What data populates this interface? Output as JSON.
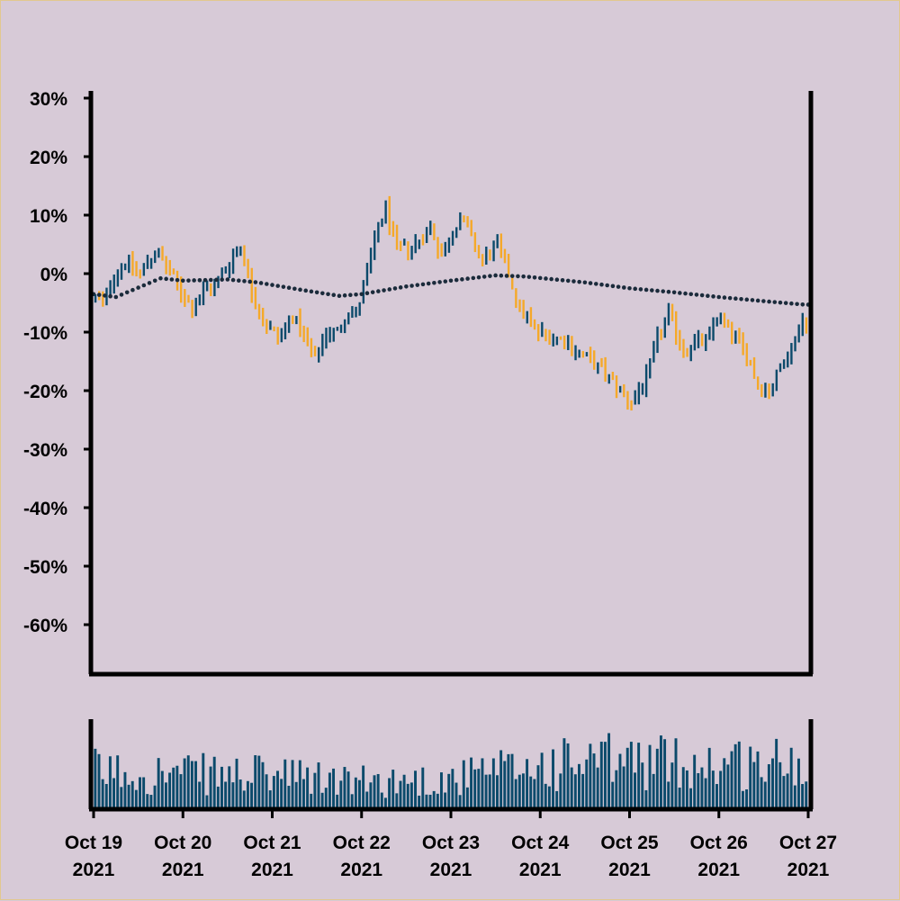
{
  "colors": {
    "background": "#d7cad7",
    "border": "#e2c88f",
    "up": "#0b4a6b",
    "down": "#f5a92a",
    "moving_average": "#1b2b3b",
    "volume": "#0b4a6b",
    "axis": "#000000"
  },
  "chart_data": [
    {
      "type": "ohlc",
      "title": "",
      "xlabel": "",
      "ylabel": "",
      "yunit": "%",
      "ylim": [
        -70,
        30
      ],
      "yticks": [
        30,
        20,
        10,
        0,
        -10,
        -20,
        -30,
        -40,
        -50,
        -60
      ],
      "ytick_labels": [
        "30%",
        "20%",
        "10%",
        "0%",
        "-10%",
        "-20%",
        "-30%",
        "-40%",
        "-50%",
        "-60%"
      ],
      "x_start": "2021-10-19 00:00",
      "x_end": "2021-10-27 00:00",
      "bar_interval_hours": 1,
      "grid": false,
      "close_path": [
        [
          "2021-10-19 00:00",
          -4
        ],
        [
          "2021-10-19 03:00",
          -5
        ],
        [
          "2021-10-19 06:00",
          0
        ],
        [
          "2021-10-19 09:00",
          2
        ],
        [
          "2021-10-19 13:00",
          0
        ],
        [
          "2021-10-19 17:00",
          4
        ],
        [
          "2021-10-19 22:00",
          -1
        ],
        [
          "2021-10-20 03:00",
          -6
        ],
        [
          "2021-10-20 06:00",
          -3
        ],
        [
          "2021-10-20 09:00",
          -2
        ],
        [
          "2021-10-20 13:00",
          2
        ],
        [
          "2021-10-20 16:00",
          5
        ],
        [
          "2021-10-20 19:00",
          -3
        ],
        [
          "2021-10-20 22:00",
          -8
        ],
        [
          "2021-10-21 02:00",
          -11
        ],
        [
          "2021-10-21 06:00",
          -7
        ],
        [
          "2021-10-21 09:00",
          -11
        ],
        [
          "2021-10-21 12:00",
          -15
        ],
        [
          "2021-10-21 15:00",
          -10
        ],
        [
          "2021-10-21 18:00",
          -10
        ],
        [
          "2021-10-21 21:00",
          -6
        ],
        [
          "2021-10-21 23:00",
          -7
        ],
        [
          "2021-10-22 02:00",
          0
        ],
        [
          "2021-10-22 05:00",
          8
        ],
        [
          "2021-10-22 07:00",
          11
        ],
        [
          "2021-10-22 10:00",
          4
        ],
        [
          "2021-10-22 15:00",
          5
        ],
        [
          "2021-10-22 19:00",
          8
        ],
        [
          "2021-10-22 22:00",
          3
        ],
        [
          "2021-10-23 03:00",
          10
        ],
        [
          "2021-10-23 06:00",
          6
        ],
        [
          "2021-10-23 09:00",
          2
        ],
        [
          "2021-10-23 13:00",
          5
        ],
        [
          "2021-10-23 16:00",
          0
        ],
        [
          "2021-10-23 19:00",
          -6
        ],
        [
          "2021-10-24 00:00",
          -10
        ],
        [
          "2021-10-24 06:00",
          -11
        ],
        [
          "2021-10-24 12:00",
          -14
        ],
        [
          "2021-10-24 18:00",
          -17
        ],
        [
          "2021-10-24 22:00",
          -20
        ],
        [
          "2021-10-25 01:00",
          -22
        ],
        [
          "2021-10-25 05:00",
          -18
        ],
        [
          "2021-10-25 08:00",
          -11
        ],
        [
          "2021-10-25 11:00",
          -7
        ],
        [
          "2021-10-25 15:00",
          -13
        ],
        [
          "2021-10-25 18:00",
          -12
        ],
        [
          "2021-10-25 22:00",
          -11
        ],
        [
          "2021-10-26 00:00",
          -7
        ],
        [
          "2021-10-26 04:00",
          -10
        ],
        [
          "2021-10-26 08:00",
          -14
        ],
        [
          "2021-10-26 11:00",
          -19
        ],
        [
          "2021-10-26 14:00",
          -20
        ],
        [
          "2021-10-26 18:00",
          -15
        ],
        [
          "2021-10-26 21:00",
          -11
        ],
        [
          "2021-10-26 23:00",
          -8
        ]
      ],
      "moving_average": [
        [
          "2021-10-19 00:00",
          -3.5
        ],
        [
          "2021-10-19 06:00",
          -4
        ],
        [
          "2021-10-19 18:00",
          -0.8
        ],
        [
          "2021-10-20 00:00",
          -1.2
        ],
        [
          "2021-10-20 12:00",
          -1
        ],
        [
          "2021-10-20 20:00",
          -1.5
        ],
        [
          "2021-10-21 08:00",
          -2.8
        ],
        [
          "2021-10-21 18:00",
          -3.8
        ],
        [
          "2021-10-22 00:00",
          -3.5
        ],
        [
          "2021-10-22 12:00",
          -2.2
        ],
        [
          "2021-10-23 00:00",
          -1.2
        ],
        [
          "2021-10-23 12:00",
          -0.3
        ],
        [
          "2021-10-23 20:00",
          -0.5
        ],
        [
          "2021-10-24 12:00",
          -1.5
        ],
        [
          "2021-10-25 00:00",
          -2.5
        ],
        [
          "2021-10-25 12:00",
          -3.2
        ],
        [
          "2021-10-26 00:00",
          -4
        ],
        [
          "2021-10-26 12:00",
          -4.7
        ],
        [
          "2021-10-26 23:00",
          -5.3
        ]
      ]
    },
    {
      "type": "bar",
      "name": "volume",
      "xticks": [
        "2021-10-19",
        "2021-10-20",
        "2021-10-21",
        "2021-10-22",
        "2021-10-23",
        "2021-10-24",
        "2021-10-25",
        "2021-10-26",
        "2021-10-27"
      ],
      "xtick_labels": [
        [
          "Oct 19",
          "2021"
        ],
        [
          "Oct 20",
          "2021"
        ],
        [
          "Oct 21",
          "2021"
        ],
        [
          "Oct 22",
          "2021"
        ],
        [
          "Oct 23",
          "2021"
        ],
        [
          "Oct 24",
          "2021"
        ],
        [
          "Oct 25",
          "2021"
        ],
        [
          "Oct 26",
          "2021"
        ],
        [
          "Oct 27",
          "2021"
        ]
      ],
      "volume_level": [
        [
          "2021-10-19 00:00",
          0.45
        ],
        [
          "2021-10-20 00:00",
          0.42
        ],
        [
          "2021-10-21 00:00",
          0.4
        ],
        [
          "2021-10-22 00:00",
          0.32
        ],
        [
          "2021-10-23 00:00",
          0.35
        ],
        [
          "2021-10-24 00:00",
          0.52
        ],
        [
          "2021-10-25 00:00",
          0.58
        ],
        [
          "2021-10-26 00:00",
          0.55
        ],
        [
          "2021-10-27 00:00",
          0.55
        ]
      ]
    }
  ]
}
